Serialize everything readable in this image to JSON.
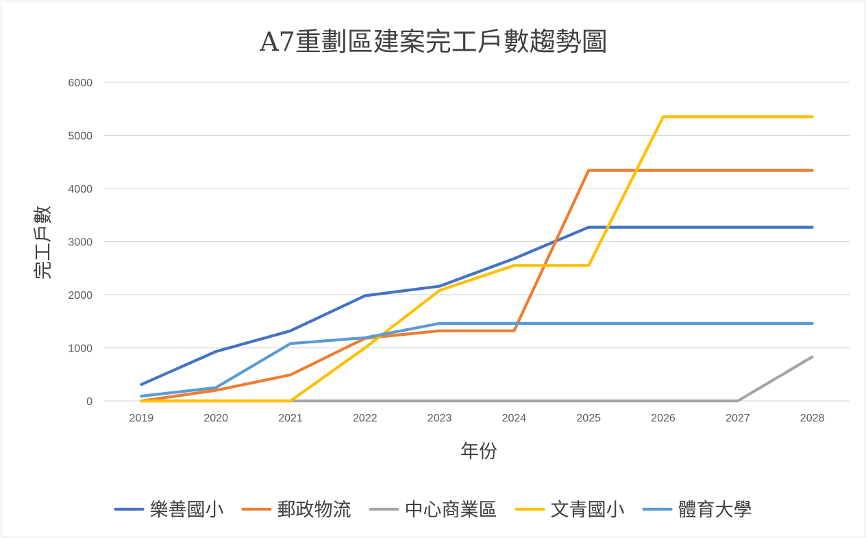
{
  "chart_data": {
    "type": "line",
    "title": "A7重劃區建案完工戶數趨勢圖",
    "xlabel": "年份",
    "ylabel": "完工戶數",
    "categories": [
      "2019",
      "2020",
      "2021",
      "2022",
      "2023",
      "2024",
      "2025",
      "2026",
      "2027",
      "2028"
    ],
    "ylim": [
      0,
      6000
    ],
    "yticks": [
      0,
      1000,
      2000,
      3000,
      4000,
      5000,
      6000
    ],
    "grid": true,
    "legend_position": "bottom",
    "series": [
      {
        "name": "樂善國小",
        "color": "#4472C4",
        "values": [
          310,
          930,
          1320,
          1980,
          2160,
          2680,
          3270,
          3270,
          3270,
          3270
        ]
      },
      {
        "name": "郵政物流",
        "color": "#ED7D31",
        "values": [
          0,
          200,
          490,
          1180,
          1320,
          1320,
          4340,
          4340,
          4340,
          4340
        ]
      },
      {
        "name": "中心商業區",
        "color": "#A5A5A5",
        "values": [
          0,
          0,
          0,
          0,
          0,
          0,
          0,
          0,
          0,
          830
        ]
      },
      {
        "name": "文青國小",
        "color": "#FFC000",
        "values": [
          0,
          0,
          0,
          1000,
          2080,
          2550,
          2550,
          5350,
          5350,
          5350
        ]
      },
      {
        "name": "體育大學",
        "color": "#5B9BD5",
        "values": [
          90,
          250,
          1080,
          1190,
          1460,
          1460,
          1460,
          1460,
          1460,
          1460
        ]
      }
    ]
  }
}
